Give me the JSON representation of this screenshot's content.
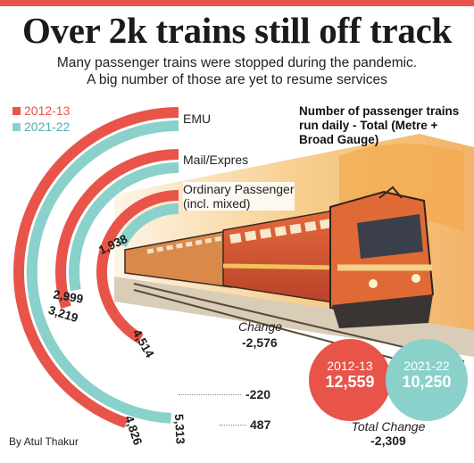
{
  "header": {
    "title": "Over 2k trains still off track",
    "subtitle_line1": "Many passenger trains were stopped during the pandemic.",
    "subtitle_line2": "A big number of those are yet to resume services"
  },
  "colors": {
    "accent_red": "#e8544a",
    "accent_teal": "#8ad1cb"
  },
  "note": "Number of passenger trains run daily - Total (Metre + Broad Gauge)",
  "change_heading": "Change",
  "credit": "By Atul Thakur",
  "totals": {
    "y1_label": "2012-13",
    "y1_value": "12,559",
    "y2_label": "2021-22",
    "y2_value": "10,250"
  },
  "total_change": {
    "label": "Total Change",
    "value": "-2,309"
  },
  "chart_data": {
    "type": "radial_bar",
    "title": "Over 2k trains still off track",
    "categories": [
      "EMU",
      "Mail/Expres",
      "Ordinary Passenger (incl. mixed)"
    ],
    "category_labels": [
      "EMU",
      "Mail/Expres",
      "Ordinary Passenger\n(incl. mixed)"
    ],
    "series": [
      {
        "name": "2012-13",
        "values": [
          4826,
          3219,
          4514
        ],
        "labels": [
          "4,826",
          "3,219",
          "4,514"
        ]
      },
      {
        "name": "2021-22",
        "values": [
          5313,
          2999,
          1938
        ],
        "labels": [
          "5,313",
          "2,999",
          "1,938"
        ]
      }
    ],
    "change": [
      487,
      -220,
      -2576
    ],
    "change_labels": [
      "487",
      "-220",
      "-2,576"
    ],
    "legend": "top-left"
  },
  "train_illustration": "train-illustration"
}
